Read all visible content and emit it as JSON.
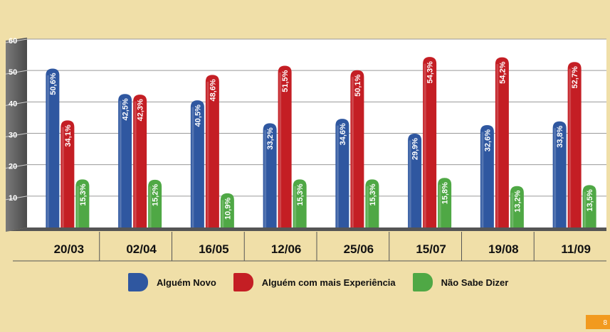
{
  "chart_data": {
    "type": "bar",
    "categories": [
      "20/03",
      "02/04",
      "16/05",
      "12/06",
      "25/06",
      "15/07",
      "19/08",
      "11/09"
    ],
    "series": [
      {
        "name": "Alguém Novo",
        "color": "#2f57a0",
        "values": [
          50.6,
          42.5,
          40.5,
          33.2,
          34.6,
          29.9,
          32.6,
          33.8
        ],
        "labels": [
          "50,6%",
          "42,5%",
          "40,5%",
          "33,2%",
          "34,6%",
          "29,9%",
          "32,6%",
          "33,8%"
        ]
      },
      {
        "name": "Alguém com mais Experiência",
        "color": "#c41e24",
        "values": [
          34.1,
          42.3,
          48.6,
          51.5,
          50.1,
          54.3,
          54.2,
          52.7
        ],
        "labels": [
          "34,1%",
          "42,3%",
          "48,6%",
          "51,5%",
          "50,1%",
          "54,3%",
          "54,2%",
          "52,7%"
        ]
      },
      {
        "name": "Não Sabe Dizer",
        "color": "#4fa845",
        "values": [
          15.3,
          15.2,
          10.9,
          15.3,
          15.3,
          15.8,
          13.2,
          13.5
        ],
        "labels": [
          "15,3%",
          "15,2%",
          "10,9%",
          "15,3%",
          "15,3%",
          "15,8%",
          "13,2%",
          "13,5%"
        ]
      }
    ],
    "yticks": [
      "10",
      "20",
      "30",
      "40",
      "50",
      "60"
    ],
    "ylim": [
      0,
      60
    ],
    "grid": true,
    "legend": "bottom",
    "title": "",
    "xlabel": "",
    "ylabel": ""
  },
  "page_number": "8"
}
